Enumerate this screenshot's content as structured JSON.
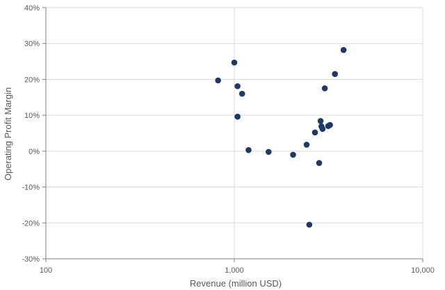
{
  "chart_data": {
    "type": "scatter",
    "xlabel": "Revenue (million USD)",
    "ylabel": "Operating Profit Margin",
    "x_scale": "log",
    "xlim": [
      100,
      10000
    ],
    "ylim": [
      -30,
      40
    ],
    "x_ticks": [
      100,
      1000,
      10000
    ],
    "x_tick_labels": [
      "100",
      "1,000",
      "10,000"
    ],
    "y_ticks": [
      -30,
      -20,
      -10,
      0,
      10,
      20,
      30,
      40
    ],
    "y_tick_labels": [
      "-30%",
      "-20%",
      "-10%",
      "0%",
      "10%",
      "20%",
      "30%",
      "40%"
    ],
    "grid": true,
    "marker_color": "#1f3864",
    "series": [
      {
        "points": [
          {
            "x": 820,
            "y": 19.7
          },
          {
            "x": 1000,
            "y": 24.7
          },
          {
            "x": 1040,
            "y": 18.1
          },
          {
            "x": 1100,
            "y": 16.0
          },
          {
            "x": 1040,
            "y": 9.6
          },
          {
            "x": 1190,
            "y": 0.3
          },
          {
            "x": 1520,
            "y": -0.2
          },
          {
            "x": 2050,
            "y": -1.0
          },
          {
            "x": 2420,
            "y": 1.8
          },
          {
            "x": 2500,
            "y": -20.5
          },
          {
            "x": 2680,
            "y": 5.2
          },
          {
            "x": 2820,
            "y": -3.3
          },
          {
            "x": 2870,
            "y": 8.4
          },
          {
            "x": 2900,
            "y": 6.9
          },
          {
            "x": 2940,
            "y": 6.2
          },
          {
            "x": 3150,
            "y": 7.0
          },
          {
            "x": 3220,
            "y": 7.3
          },
          {
            "x": 3020,
            "y": 17.5
          },
          {
            "x": 3420,
            "y": 21.5
          },
          {
            "x": 3800,
            "y": 28.2
          }
        ]
      }
    ]
  }
}
